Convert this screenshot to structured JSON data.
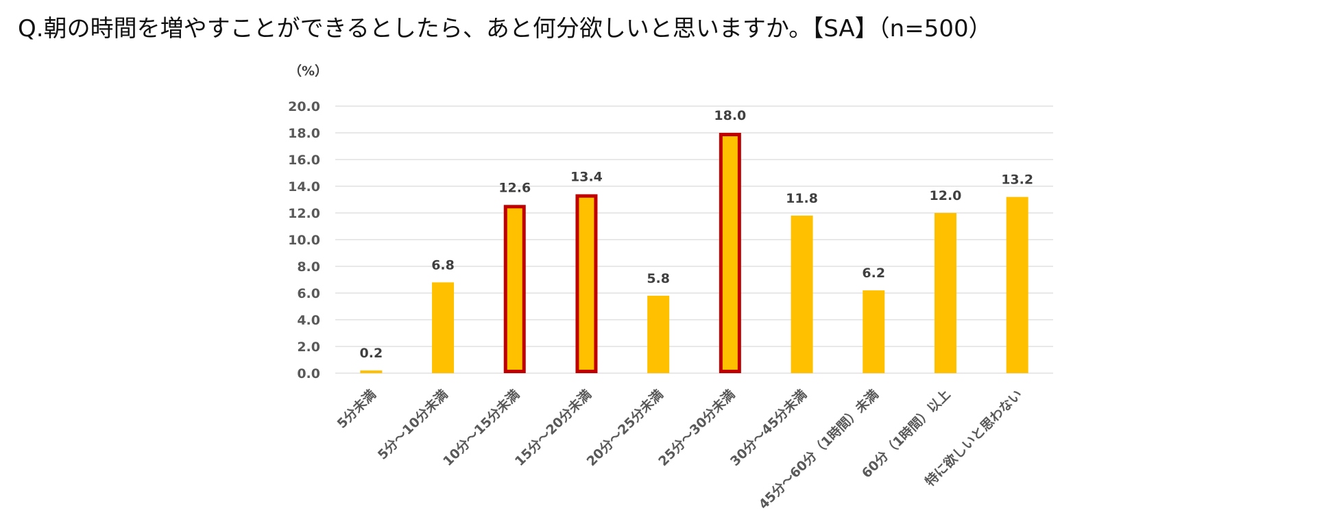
{
  "title": "Q.朝の時間を増やすことができるとしたら、あと何分欲しいと思いますか。【SA】（n=500）",
  "chart_data": {
    "type": "bar",
    "unit_label": "（%）",
    "categories": [
      "5分未満",
      "5分～10分未満",
      "10分～15分未満",
      "15分～20分未満",
      "20分～25分未満",
      "25分～30分未満",
      "30分～45分未満",
      "45分～60分（1時間）未満",
      "60分（1時間）以上",
      "特に欲しいと思わない"
    ],
    "values": [
      0.2,
      6.8,
      12.6,
      13.4,
      5.8,
      18.0,
      11.8,
      6.2,
      12.0,
      13.2
    ],
    "data_labels": [
      "0.2",
      "6.8",
      "12.6",
      "13.4",
      "5.8",
      "18.0",
      "11.8",
      "6.2",
      "12.0",
      "13.2"
    ],
    "highlighted": [
      false,
      false,
      true,
      true,
      false,
      true,
      false,
      false,
      false,
      false
    ],
    "ylim": [
      0,
      20
    ],
    "yticks": [
      "0.0",
      "2.0",
      "4.0",
      "6.0",
      "8.0",
      "10.0",
      "12.0",
      "14.0",
      "16.0",
      "18.0",
      "20.0"
    ],
    "grid": true,
    "legend": "none",
    "colors": {
      "bar": "#FFC000",
      "highlight_border": "#C00000",
      "grid": "#D9D9D9"
    }
  }
}
